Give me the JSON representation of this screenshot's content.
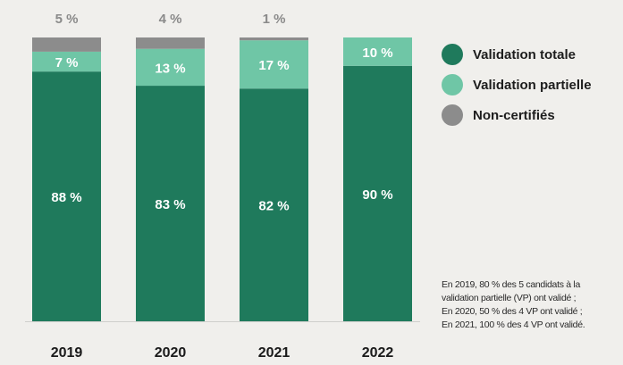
{
  "chart_data": {
    "type": "bar",
    "stacked": true,
    "ylim": [
      0,
      100
    ],
    "categories": [
      "2019",
      "2020",
      "2021",
      "2022"
    ],
    "series": [
      {
        "name": "Validation totale",
        "color": "#1f7a5c",
        "values": [
          88,
          83,
          82,
          90
        ],
        "labels": [
          "88 %",
          "83 %",
          "82 %",
          "90 %"
        ]
      },
      {
        "name": "Validation partielle",
        "color": "#6fc6a6",
        "values": [
          7,
          13,
          17,
          10
        ],
        "labels": [
          "7 %",
          "13 %",
          "17 %",
          "10 %"
        ]
      },
      {
        "name": "Non-certifiés",
        "color": "#8c8c8c",
        "values": [
          5,
          4,
          1,
          0
        ],
        "labels": [
          "5 %",
          "4 %",
          "1 %",
          ""
        ]
      }
    ],
    "legend": "right",
    "grid": false
  },
  "note": [
    "En 2019, 80 % des 5 candidats à la",
    "validation partielle (VP) ont validé ;",
    "En 2020, 50 % des 4 VP ont validé ;",
    "En 2021, 100 % des 4 VP ont validé."
  ]
}
